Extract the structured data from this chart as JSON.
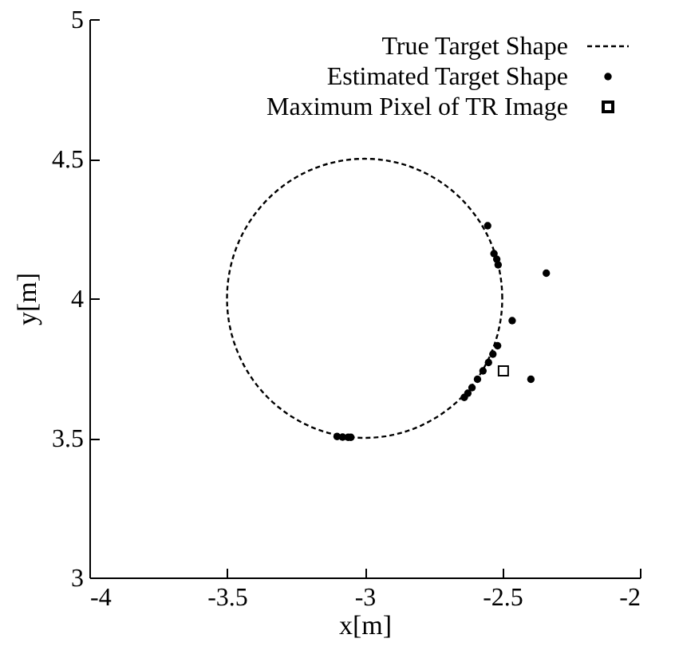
{
  "chart_data": {
    "type": "scatter",
    "xlabel": "x[m]",
    "ylabel": "y[m]",
    "xlim": [
      -4,
      -2
    ],
    "ylim": [
      3,
      5
    ],
    "xticks": [
      -4,
      -3.5,
      -3,
      -2.5,
      -2
    ],
    "yticks": [
      3,
      3.5,
      4,
      4.5,
      5
    ],
    "legend": "top right",
    "annotations": [
      "True Target Shape"
    ],
    "series": [
      {
        "name": "Estimated Target Shape",
        "marker": "circle",
        "color": "#000000",
        "x": [
          -2.553,
          -2.53,
          -2.52,
          -2.515,
          -2.34,
          -2.464,
          -2.517,
          -2.396,
          -2.534,
          -2.55,
          -2.57,
          -2.59,
          -2.61,
          -2.625,
          -2.638,
          -3.1,
          -3.08,
          -3.06,
          -3.05
        ],
        "values": [
          4.26,
          4.16,
          4.14,
          4.12,
          4.09,
          3.92,
          3.83,
          3.71,
          3.8,
          3.77,
          3.74,
          3.71,
          3.68,
          3.66,
          3.645,
          3.505,
          3.503,
          3.502,
          3.502
        ]
      },
      {
        "name": "Maximum Pixel of TR Image",
        "type": "scatter",
        "marker": "square",
        "color": "#000000",
        "x": [
          -2.496
        ],
        "values": [
          3.74
        ]
      }
    ]
  }
}
